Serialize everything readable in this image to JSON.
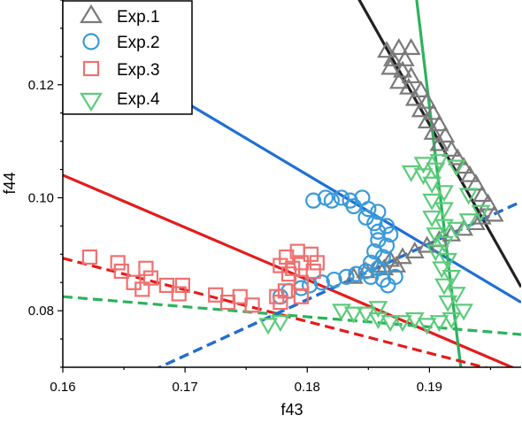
{
  "chart_data": {
    "type": "scatter",
    "title": "",
    "xlabel": "f43",
    "ylabel": "f44",
    "xlim": [
      0.16,
      0.1975
    ],
    "ylim": [
      0.07,
      0.135
    ],
    "x_ticks": [
      "0.16",
      "0.17",
      "0.18",
      "0.19"
    ],
    "y_ticks": [
      "0.08",
      "0.10",
      "0.12"
    ],
    "x_tick_values": [
      0.16,
      0.17,
      0.18,
      0.19
    ],
    "y_tick_values": [
      0.08,
      0.1,
      0.12
    ],
    "grid": false,
    "legend_position": "top-left",
    "series": [
      {
        "name": "Exp.1",
        "marker": "triangle-up",
        "color": "#7a7a7a",
        "points": [
          [
            0.1865,
            0.126
          ],
          [
            0.1875,
            0.1265
          ],
          [
            0.1885,
            0.1265
          ],
          [
            0.187,
            0.1245
          ],
          [
            0.188,
            0.1245
          ],
          [
            0.1868,
            0.123
          ],
          [
            0.1878,
            0.1225
          ],
          [
            0.1885,
            0.1215
          ],
          [
            0.1875,
            0.1205
          ],
          [
            0.1883,
            0.1195
          ],
          [
            0.1893,
            0.119
          ],
          [
            0.1888,
            0.1175
          ],
          [
            0.1898,
            0.117
          ],
          [
            0.1893,
            0.1155
          ],
          [
            0.1903,
            0.115
          ],
          [
            0.1898,
            0.1135
          ],
          [
            0.1908,
            0.113
          ],
          [
            0.1903,
            0.1115
          ],
          [
            0.1913,
            0.111
          ],
          [
            0.1908,
            0.1095
          ],
          [
            0.1918,
            0.1085
          ],
          [
            0.1923,
            0.107
          ],
          [
            0.1928,
            0.1055
          ],
          [
            0.1933,
            0.104
          ],
          [
            0.1938,
            0.1025
          ],
          [
            0.1943,
            0.1005
          ],
          [
            0.1948,
            0.099
          ],
          [
            0.1953,
            0.097
          ],
          [
            0.1943,
            0.0965
          ],
          [
            0.1938,
            0.0955
          ],
          [
            0.1928,
            0.0945
          ],
          [
            0.1918,
            0.0935
          ],
          [
            0.1908,
            0.0925
          ],
          [
            0.1898,
            0.0915
          ],
          [
            0.1888,
            0.0905
          ],
          [
            0.1878,
            0.0895
          ],
          [
            0.1868,
            0.089
          ],
          [
            0.1858,
            0.088
          ],
          [
            0.1848,
            0.087
          ],
          [
            0.1838,
            0.086
          ],
          [
            0.1863,
            0.0875
          ],
          [
            0.1873,
            0.088
          ]
        ]
      },
      {
        "name": "Exp.2",
        "marker": "circle",
        "color": "#3a9ad9",
        "points": [
          [
            0.1805,
            0.0995
          ],
          [
            0.182,
            0.0995
          ],
          [
            0.1835,
            0.0995
          ],
          [
            0.1845,
            0.1
          ],
          [
            0.1828,
            0.1
          ],
          [
            0.1815,
            0.1
          ],
          [
            0.1838,
            0.0985
          ],
          [
            0.185,
            0.098
          ],
          [
            0.1858,
            0.0975
          ],
          [
            0.1848,
            0.0965
          ],
          [
            0.1855,
            0.0955
          ],
          [
            0.1865,
            0.095
          ],
          [
            0.1858,
            0.094
          ],
          [
            0.1868,
            0.0935
          ],
          [
            0.1858,
            0.0925
          ],
          [
            0.1865,
            0.0915
          ],
          [
            0.1855,
            0.0905
          ],
          [
            0.1862,
            0.0895
          ],
          [
            0.1852,
            0.0885
          ],
          [
            0.1858,
            0.0875
          ],
          [
            0.1848,
            0.087
          ],
          [
            0.184,
            0.0865
          ],
          [
            0.1832,
            0.086
          ],
          [
            0.1822,
            0.0855
          ],
          [
            0.1812,
            0.085
          ],
          [
            0.1802,
            0.0845
          ],
          [
            0.1795,
            0.084
          ],
          [
            0.1785,
            0.0835
          ],
          [
            0.1778,
            0.0825
          ],
          [
            0.1852,
            0.086
          ],
          [
            0.1862,
            0.0855
          ],
          [
            0.1872,
            0.086
          ],
          [
            0.1866,
            0.0845
          ]
        ]
      },
      {
        "name": "Exp.3",
        "marker": "square",
        "color": "#f07070",
        "points": [
          [
            0.1622,
            0.0895
          ],
          [
            0.1645,
            0.0885
          ],
          [
            0.1648,
            0.087
          ],
          [
            0.1668,
            0.0875
          ],
          [
            0.1672,
            0.0858
          ],
          [
            0.1658,
            0.085
          ],
          [
            0.1685,
            0.0845
          ],
          [
            0.1698,
            0.0845
          ],
          [
            0.1665,
            0.0838
          ],
          [
            0.1695,
            0.083
          ],
          [
            0.1725,
            0.0828
          ],
          [
            0.1745,
            0.0825
          ],
          [
            0.1735,
            0.0815
          ],
          [
            0.1755,
            0.081
          ],
          [
            0.1778,
            0.0815
          ],
          [
            0.1795,
            0.0825
          ],
          [
            0.1782,
            0.0835
          ],
          [
            0.1795,
            0.085
          ],
          [
            0.1785,
            0.0865
          ],
          [
            0.1795,
            0.0885
          ],
          [
            0.1783,
            0.0895
          ],
          [
            0.1792,
            0.0905
          ],
          [
            0.1803,
            0.09
          ],
          [
            0.1808,
            0.0885
          ],
          [
            0.1778,
            0.088
          ],
          [
            0.1788,
            0.0875
          ],
          [
            0.1775,
            0.0825
          ],
          [
            0.1805,
            0.087
          ]
        ]
      },
      {
        "name": "Exp.4",
        "marker": "triangle-down",
        "color": "#5ccb7a",
        "points": [
          [
            0.1768,
            0.0775
          ],
          [
            0.1778,
            0.078
          ],
          [
            0.1848,
            0.0795
          ],
          [
            0.1858,
            0.0785
          ],
          [
            0.1868,
            0.078
          ],
          [
            0.1878,
            0.078
          ],
          [
            0.1888,
            0.0785
          ],
          [
            0.1898,
            0.0775
          ],
          [
            0.1908,
            0.078
          ],
          [
            0.1918,
            0.0785
          ],
          [
            0.1928,
            0.08
          ],
          [
            0.1915,
            0.0815
          ],
          [
            0.1922,
            0.083
          ],
          [
            0.1912,
            0.0845
          ],
          [
            0.1918,
            0.086
          ],
          [
            0.191,
            0.0875
          ],
          [
            0.1915,
            0.089
          ],
          [
            0.1905,
            0.0905
          ],
          [
            0.1912,
            0.092
          ],
          [
            0.1905,
            0.0935
          ],
          [
            0.1912,
            0.095
          ],
          [
            0.1902,
            0.0965
          ],
          [
            0.1912,
            0.098
          ],
          [
            0.1902,
            0.0995
          ],
          [
            0.1912,
            0.101
          ],
          [
            0.1902,
            0.1025
          ],
          [
            0.1895,
            0.104
          ],
          [
            0.1905,
            0.105
          ],
          [
            0.1895,
            0.106
          ],
          [
            0.1908,
            0.1065
          ],
          [
            0.1885,
            0.1045
          ],
          [
            0.1922,
            0.1055
          ],
          [
            0.1932,
            0.1005
          ],
          [
            0.1942,
            0.0975
          ],
          [
            0.1932,
            0.096
          ],
          [
            0.1922,
            0.0945
          ],
          [
            0.1858,
            0.0805
          ],
          [
            0.1838,
            0.0795
          ],
          [
            0.1828,
            0.08
          ]
        ]
      }
    ],
    "fit_lines": [
      {
        "color": "#222222",
        "style": "solid",
        "points": [
          [
            0.184,
            0.136
          ],
          [
            0.1975,
            0.0842
          ]
        ]
      },
      {
        "color": "#1f6fd6",
        "style": "solid",
        "points": [
          [
            0.1695,
            0.1176
          ],
          [
            0.1975,
            0.0815
          ]
        ]
      },
      {
        "color": "#e31c1c",
        "style": "solid",
        "points": [
          [
            0.16,
            0.104
          ],
          [
            0.1975,
            0.0693
          ]
        ]
      },
      {
        "color": "#2db25d",
        "style": "solid",
        "points": [
          [
            0.1889,
            0.136
          ],
          [
            0.1926,
            0.0693
          ]
        ]
      },
      {
        "color": "#e31c1c",
        "style": "dashed",
        "points": [
          [
            0.16,
            0.0893
          ],
          [
            0.1975,
            0.0683
          ]
        ]
      },
      {
        "color": "#2db25d",
        "style": "dashed",
        "points": [
          [
            0.16,
            0.0825
          ],
          [
            0.1975,
            0.0758
          ]
        ]
      },
      {
        "color": "#222222",
        "style": "dashed",
        "points": [
          [
            0.1662,
            0.0683
          ],
          [
            0.1975,
            0.0993
          ]
        ]
      },
      {
        "color": "#1f6fd6",
        "style": "dashed",
        "points": [
          [
            0.1662,
            0.0683
          ],
          [
            0.1975,
            0.0993
          ]
        ]
      }
    ]
  }
}
